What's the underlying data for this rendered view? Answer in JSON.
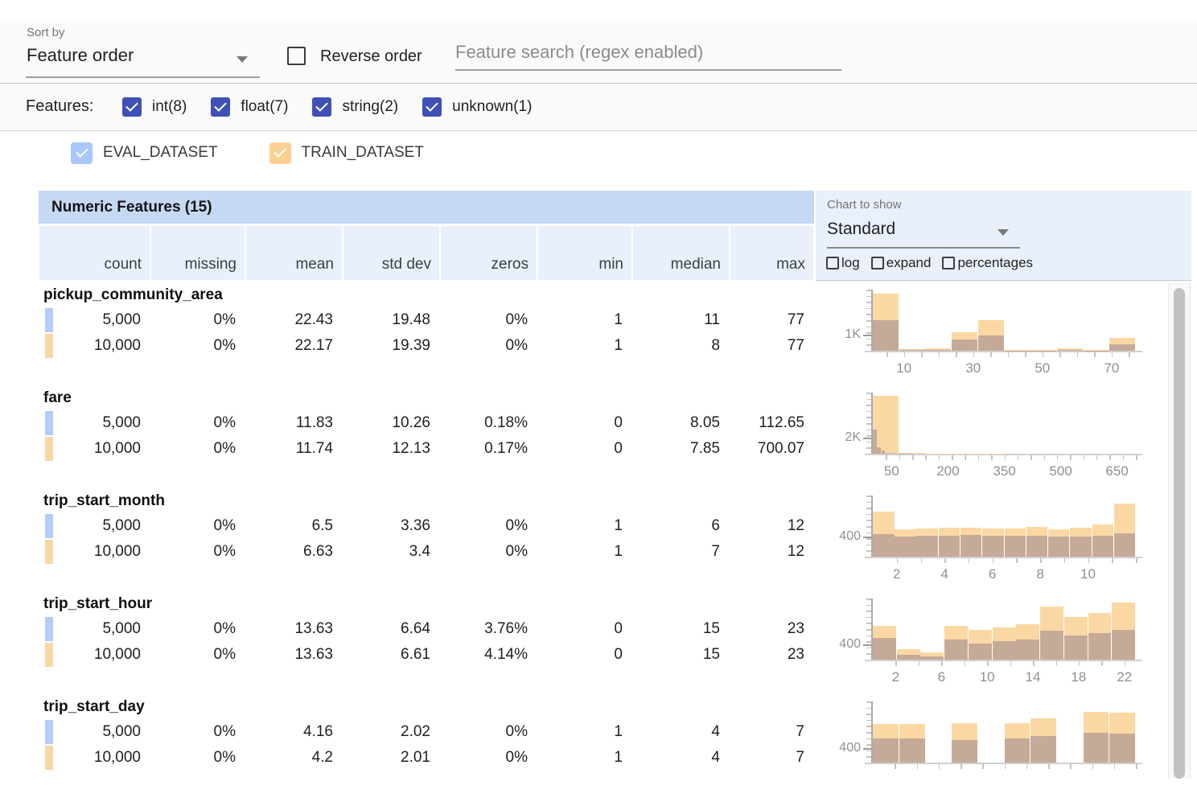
{
  "toolbar": {
    "sort_by_label": "Sort by",
    "sort_by_value": "Feature order",
    "reverse_label": "Reverse order",
    "search_placeholder": "Feature search (regex enabled)"
  },
  "filters": {
    "label": "Features:",
    "accent_color": "#3f51b5",
    "types": [
      {
        "label": "int(8)",
        "checked": true
      },
      {
        "label": "float(7)",
        "checked": true
      },
      {
        "label": "string(2)",
        "checked": true
      },
      {
        "label": "unknown(1)",
        "checked": true
      }
    ]
  },
  "datasets": [
    {
      "name": "EVAL_DATASET",
      "color": "#a8c7fa",
      "chip_color": "#b4cdf8",
      "checked": true
    },
    {
      "name": "TRAIN_DATASET",
      "color": "#fbd193",
      "chip_color": "#f8d7a6",
      "checked": true
    }
  ],
  "table": {
    "title": "Numeric Features (15)",
    "columns": [
      "count",
      "missing",
      "mean",
      "std dev",
      "zeros",
      "min",
      "median",
      "max"
    ]
  },
  "chart_controls": {
    "label": "Chart to show",
    "value": "Standard",
    "options": [
      {
        "label": "log",
        "checked": false
      },
      {
        "label": "expand",
        "checked": false
      },
      {
        "label": "percentages",
        "checked": false
      }
    ]
  },
  "chart_colors": {
    "train_bar": "#fbd8a3",
    "overlap_bar": "#c6aa98"
  },
  "features": [
    {
      "name": "pickup_community_area",
      "rows": [
        {
          "dataset": "eval",
          "values": [
            "5,000",
            "0%",
            "22.43",
            "19.48",
            "0%",
            "1",
            "11",
            "77"
          ]
        },
        {
          "dataset": "train",
          "values": [
            "10,000",
            "0%",
            "22.17",
            "19.39",
            "0%",
            "1",
            "8",
            "77"
          ]
        }
      ],
      "chart": {
        "type": "histogram",
        "ylabel": "1K",
        "ylabel_value": 1000,
        "ymax": 3800,
        "xmin": 1,
        "xmax": 77,
        "xtick_step": 5,
        "xticks": [
          10,
          30,
          50,
          70
        ],
        "train_bars": [
          [
            1,
            8.6,
            3550
          ],
          [
            8.6,
            16.2,
            90
          ],
          [
            16.2,
            23.8,
            140
          ],
          [
            23.8,
            31.4,
            1150
          ],
          [
            31.4,
            39,
            1900
          ],
          [
            39,
            46.6,
            45
          ],
          [
            46.6,
            54.2,
            30
          ],
          [
            54.2,
            61.8,
            140
          ],
          [
            61.8,
            69.4,
            40
          ],
          [
            69.4,
            77,
            800
          ]
        ],
        "eval_bars": [
          [
            1,
            8.6,
            1900
          ],
          [
            8.6,
            16.2,
            40
          ],
          [
            16.2,
            23.8,
            60
          ],
          [
            23.8,
            31.4,
            700
          ],
          [
            31.4,
            39,
            950
          ],
          [
            39,
            46.6,
            25
          ],
          [
            46.6,
            54.2,
            15
          ],
          [
            54.2,
            61.8,
            60
          ],
          [
            61.8,
            69.4,
            20
          ],
          [
            69.4,
            77,
            380
          ]
        ]
      }
    },
    {
      "name": "fare",
      "rows": [
        {
          "dataset": "eval",
          "values": [
            "5,000",
            "0%",
            "11.83",
            "10.26",
            "0.18%",
            "0",
            "8.05",
            "112.65"
          ]
        },
        {
          "dataset": "train",
          "values": [
            "10,000",
            "0%",
            "11.74",
            "12.13",
            "0.17%",
            "0",
            "7.85",
            "700.07"
          ]
        }
      ],
      "chart": {
        "type": "histogram",
        "ylabel": "2K",
        "ylabel_value": 2000,
        "ymax": 7400,
        "xmin": 0,
        "xmax": 700,
        "xtick_step": 35,
        "xticks": [
          50,
          200,
          350,
          500,
          650
        ],
        "train_bars": [
          [
            0,
            70,
            7000
          ],
          [
            70,
            140,
            120
          ],
          [
            140,
            210,
            40
          ],
          [
            210,
            280,
            15
          ],
          [
            280,
            350,
            8
          ],
          [
            350,
            420,
            4
          ],
          [
            420,
            490,
            2
          ],
          [
            490,
            560,
            1
          ],
          [
            560,
            630,
            1
          ],
          [
            630,
            700,
            2
          ]
        ],
        "eval_bars": [
          [
            0,
            11.27,
            2950
          ],
          [
            11.27,
            22.53,
            760
          ],
          [
            22.53,
            33.8,
            380
          ],
          [
            33.8,
            45.06,
            150
          ],
          [
            45.06,
            56.33,
            70
          ],
          [
            56.33,
            67.59,
            35
          ],
          [
            67.59,
            78.86,
            20
          ],
          [
            78.86,
            90.12,
            10
          ],
          [
            90.12,
            101.39,
            5
          ],
          [
            101.39,
            112.65,
            3
          ]
        ]
      }
    },
    {
      "name": "trip_start_month",
      "rows": [
        {
          "dataset": "eval",
          "values": [
            "5,000",
            "0%",
            "6.5",
            "3.36",
            "0%",
            "1",
            "6",
            "12"
          ]
        },
        {
          "dataset": "train",
          "values": [
            "10,000",
            "0%",
            "6.63",
            "3.4",
            "0%",
            "1",
            "7",
            "12"
          ]
        }
      ],
      "chart": {
        "type": "histogram",
        "ylabel": "400",
        "ylabel_value": 400,
        "ymax": 1200,
        "xmin": 1,
        "xmax": 12,
        "xtick_step": 1,
        "xticks": [
          2,
          4,
          6,
          8,
          10
        ],
        "train_bars": [
          [
            1,
            1.92,
            880
          ],
          [
            1.92,
            2.83,
            540
          ],
          [
            2.83,
            3.75,
            560
          ],
          [
            3.75,
            4.67,
            570
          ],
          [
            4.67,
            5.58,
            565
          ],
          [
            5.58,
            6.5,
            550
          ],
          [
            6.5,
            7.42,
            555
          ],
          [
            7.42,
            8.33,
            590
          ],
          [
            8.33,
            9.25,
            535
          ],
          [
            9.25,
            10.17,
            575
          ],
          [
            10.17,
            11.08,
            625
          ],
          [
            11.08,
            12,
            1050
          ]
        ],
        "eval_bars": [
          [
            1,
            1.92,
            450
          ],
          [
            1.92,
            2.83,
            400
          ],
          [
            2.83,
            3.75,
            405
          ],
          [
            3.75,
            4.67,
            415
          ],
          [
            4.67,
            5.58,
            420
          ],
          [
            5.58,
            6.5,
            415
          ],
          [
            6.5,
            7.42,
            405
          ],
          [
            7.42,
            8.33,
            410
          ],
          [
            8.33,
            9.25,
            395
          ],
          [
            9.25,
            10.17,
            400
          ],
          [
            10.17,
            11.08,
            410
          ],
          [
            11.08,
            12,
            465
          ]
        ]
      }
    },
    {
      "name": "trip_start_hour",
      "rows": [
        {
          "dataset": "eval",
          "values": [
            "5,000",
            "0%",
            "13.63",
            "6.64",
            "3.76%",
            "0",
            "15",
            "23"
          ]
        },
        {
          "dataset": "train",
          "values": [
            "10,000",
            "0%",
            "13.63",
            "6.61",
            "4.14%",
            "0",
            "15",
            "23"
          ]
        }
      ],
      "chart": {
        "type": "histogram",
        "ylabel": "400",
        "ylabel_value": 400,
        "ymax": 1600,
        "xmin": 0,
        "xmax": 23,
        "xtick_step": 2,
        "xticks": [
          2,
          6,
          10,
          14,
          18,
          22
        ],
        "train_bars": [
          [
            0,
            2.09,
            880
          ],
          [
            2.09,
            4.18,
            270
          ],
          [
            4.18,
            6.27,
            190
          ],
          [
            6.27,
            8.36,
            880
          ],
          [
            8.36,
            10.45,
            770
          ],
          [
            10.45,
            12.55,
            850
          ],
          [
            12.55,
            14.64,
            930
          ],
          [
            14.64,
            16.73,
            1390
          ],
          [
            16.73,
            18.82,
            1120
          ],
          [
            18.82,
            20.91,
            1230
          ],
          [
            20.91,
            23,
            1490
          ]
        ],
        "eval_bars": [
          [
            0,
            2.09,
            560
          ],
          [
            2.09,
            4.18,
            130
          ],
          [
            4.18,
            6.27,
            95
          ],
          [
            6.27,
            8.36,
            530
          ],
          [
            8.36,
            10.45,
            430
          ],
          [
            10.45,
            12.55,
            480
          ],
          [
            12.55,
            14.64,
            530
          ],
          [
            14.64,
            16.73,
            750
          ],
          [
            16.73,
            18.82,
            640
          ],
          [
            18.82,
            20.91,
            690
          ],
          [
            20.91,
            23,
            770
          ]
        ]
      }
    },
    {
      "name": "trip_start_day",
      "rows": [
        {
          "dataset": "eval",
          "values": [
            "5,000",
            "0%",
            "4.16",
            "2.02",
            "0%",
            "1",
            "4",
            "7"
          ]
        },
        {
          "dataset": "train",
          "values": [
            "10,000",
            "0%",
            "4.2",
            "2.01",
            "0%",
            "1",
            "4",
            "7"
          ]
        }
      ],
      "chart": {
        "type": "histogram",
        "ylabel": "400",
        "ylabel_value": 400,
        "ymax": 1650,
        "xmin": 1,
        "xmax": 7,
        "xtick_step": 0.5,
        "xticks": [],
        "train_bars": [
          [
            1,
            1.6,
            1040
          ],
          [
            1.6,
            2.2,
            1040
          ],
          [
            2.2,
            2.8,
            0
          ],
          [
            2.8,
            3.4,
            1055
          ],
          [
            3.4,
            4,
            0
          ],
          [
            4,
            4.6,
            1070
          ],
          [
            4.6,
            5.2,
            1190
          ],
          [
            5.2,
            5.8,
            0
          ],
          [
            5.8,
            6.4,
            1370
          ],
          [
            6.4,
            7,
            1355
          ]
        ],
        "eval_bars": [
          [
            1,
            1.6,
            660
          ],
          [
            1.6,
            2.2,
            645
          ],
          [
            2.2,
            2.8,
            0
          ],
          [
            2.8,
            3.4,
            610
          ],
          [
            3.4,
            4,
            0
          ],
          [
            4,
            4.6,
            660
          ],
          [
            4.6,
            5.2,
            725
          ],
          [
            5.2,
            5.8,
            0
          ],
          [
            5.8,
            6.4,
            810
          ],
          [
            6.4,
            7,
            790
          ]
        ]
      }
    }
  ]
}
